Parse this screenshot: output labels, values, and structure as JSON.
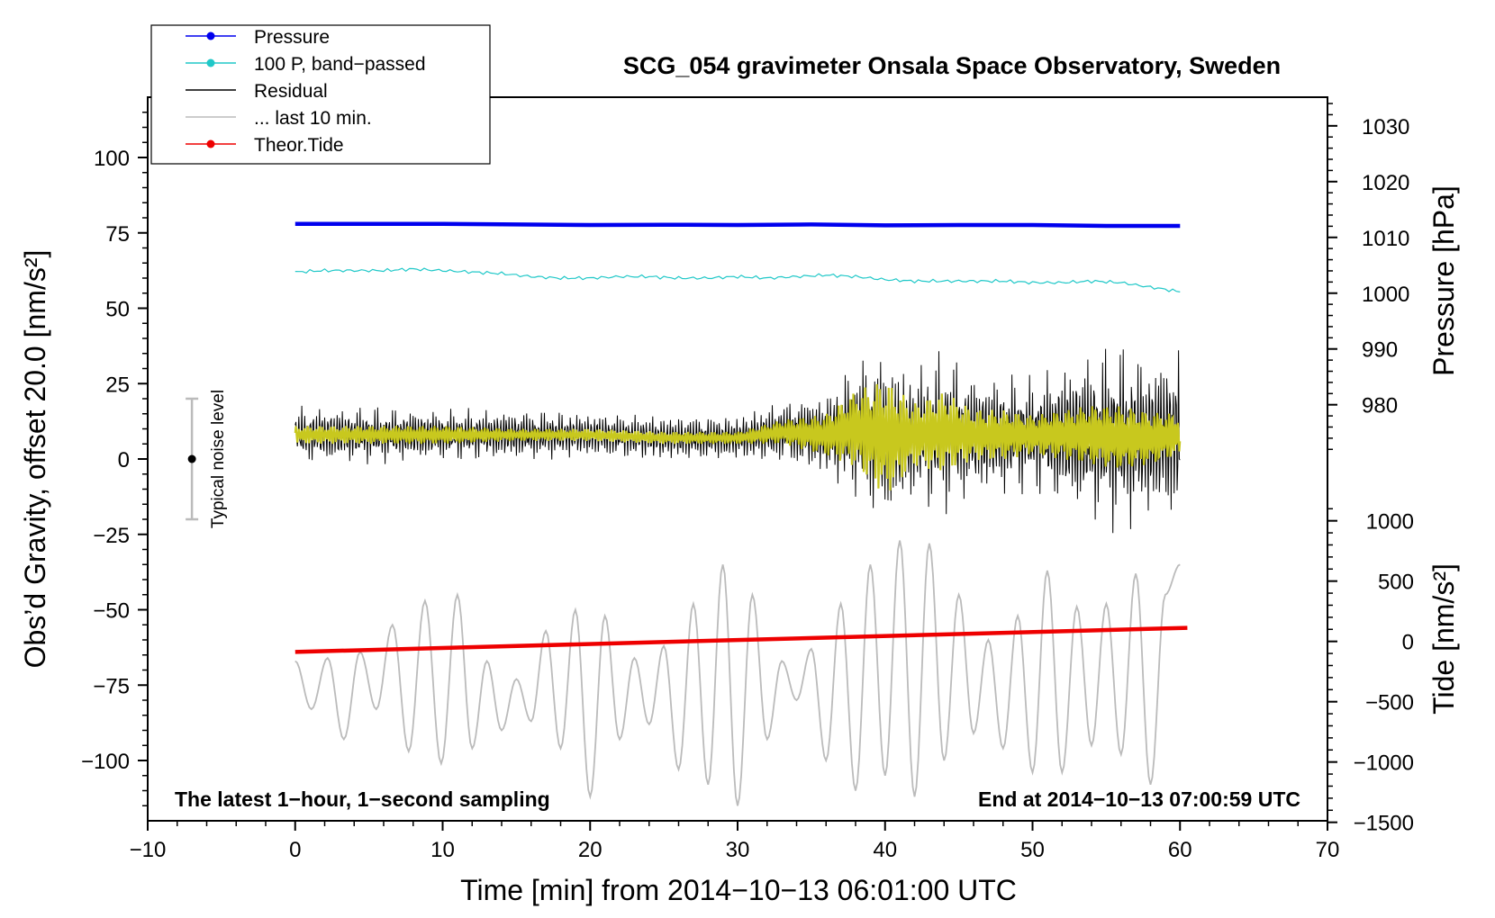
{
  "chart_data": {
    "type": "line",
    "title": "SCG_054 gravimeter Onsala Space Observatory, Sweden",
    "xlabel": "Time [min] from 2014−10−13 06:01:00 UTC",
    "ylabel_left": "Obs’d Gravity, offset 20.0 [nm/s²]",
    "ylabel_right_pressure": "Pressure [hPa]",
    "ylabel_right_tide": "Tide [nm/s²]",
    "xlim": [
      -10,
      70
    ],
    "ylim": [
      -120,
      120
    ],
    "xticks": [
      -10,
      0,
      10,
      20,
      30,
      40,
      50,
      60,
      70
    ],
    "xtick_labels": [
      "−10",
      "0",
      "10",
      "20",
      "30",
      "40",
      "50",
      "60",
      "70"
    ],
    "yticks": [
      -100,
      -75,
      -50,
      -25,
      0,
      25,
      50,
      75,
      100
    ],
    "ytick_labels": [
      "−100",
      "−75",
      "−50",
      "−25",
      "0",
      "25",
      "50",
      "75",
      "100"
    ],
    "pressure_axis": {
      "ticks": [
        980,
        990,
        1000,
        1010,
        1020,
        1030
      ],
      "tick_labels": [
        "980",
        "990",
        "1000",
        "1010",
        "1020",
        "1030"
      ],
      "gravity_at_980": 18,
      "gravity_units_per_hPa": 1.85
    },
    "tide_axis": {
      "ticks": [
        -1500,
        -1000,
        -500,
        0,
        500,
        1000
      ],
      "tick_labels": [
        "−1500",
        "−1000",
        "−500",
        "0",
        "500",
        "1000"
      ],
      "gravity_at_0": -60.5,
      "gravity_units_per_1000": 40
    },
    "legend": [
      {
        "label": "Pressure",
        "color": "#0000ee",
        "marker": true
      },
      {
        "label": "100 P, band−passed",
        "color": "#20c8c8",
        "marker": true
      },
      {
        "label": "Residual",
        "color": "#000000",
        "marker": false
      },
      {
        "label": "... last 10 min.",
        "color": "#bbbbbb",
        "marker": false
      },
      {
        "label": "Theor.Tide",
        "color": "#ee0000",
        "marker": true
      }
    ],
    "annotations": {
      "left": "The latest 1−hour, 1−second sampling",
      "right": "End at 2014−10−13 07:00:59 UTC",
      "noise": "Typical noise level"
    },
    "noise_bar": {
      "x": -7,
      "center": 0,
      "half_range": 20
    },
    "series": [
      {
        "name": "Pressure",
        "color": "#0000ee",
        "x": [
          0,
          5,
          10,
          15,
          20,
          25,
          30,
          35,
          40,
          45,
          50,
          55,
          60
        ],
        "y": [
          78.0,
          78.0,
          78.0,
          77.8,
          77.6,
          77.7,
          77.6,
          77.8,
          77.5,
          77.6,
          77.6,
          77.3,
          77.3
        ]
      },
      {
        "name": "100 P, band-passed",
        "color": "#20c8c8",
        "x": [
          0,
          2,
          4,
          6,
          8,
          10,
          12,
          14,
          16,
          18,
          20,
          22,
          24,
          26,
          28,
          30,
          32,
          34,
          36,
          38,
          40,
          42,
          44,
          46,
          48,
          50,
          52,
          54,
          56,
          58,
          60
        ],
        "y": [
          62,
          62.5,
          62.5,
          62.5,
          63,
          62.5,
          62,
          61.5,
          60.5,
          60,
          60,
          60.5,
          60.5,
          60,
          60,
          60.5,
          60,
          60.5,
          61,
          60.5,
          59.5,
          59,
          59,
          59,
          59,
          58.5,
          58.5,
          59,
          58.5,
          57,
          55.5
        ]
      },
      {
        "name": "Theor.Tide",
        "color": "#ee0000",
        "x": [
          0,
          60.5
        ],
        "y": [
          -64,
          -56
        ]
      },
      {
        "name": "Residual",
        "color": "#000000",
        "x": [
          0,
          5,
          10,
          15,
          20,
          25,
          30,
          33,
          36,
          38,
          40,
          42,
          44,
          46,
          48,
          50,
          52,
          54,
          56,
          58,
          60
        ],
        "y": [
          8,
          8,
          8,
          8,
          8,
          7,
          7,
          9,
          8,
          10,
          7,
          8,
          9,
          8,
          8,
          8,
          8,
          8,
          7,
          7,
          8
        ],
        "amplitude": [
          10,
          10,
          9,
          9,
          8,
          8,
          8,
          11,
          15,
          24,
          31,
          24,
          29,
          22,
          22,
          20,
          26,
          30,
          33,
          29,
          32
        ]
      },
      {
        "name": "band-passed residual",
        "color": "#c8c81e",
        "x": [
          0,
          5,
          10,
          15,
          20,
          25,
          30,
          33,
          36,
          38,
          40,
          42,
          44,
          46,
          48,
          50,
          52,
          54,
          56,
          58,
          60
        ],
        "y": [
          8,
          8,
          8,
          8,
          8,
          7,
          7,
          9,
          8,
          10,
          7,
          8,
          9,
          8,
          8,
          8,
          8,
          8,
          7,
          7,
          8
        ],
        "amplitude": [
          3,
          3,
          3,
          2,
          2,
          2,
          2,
          4,
          7,
          13,
          20,
          11,
          14,
          9,
          9,
          7,
          9,
          11,
          12,
          10,
          8
        ]
      },
      {
        "name": "... last 10 min.",
        "color": "#bbbbbb",
        "x": [
          0,
          1.1,
          2.2,
          3.3,
          4.4,
          5.5,
          6.6,
          7.7,
          8.8,
          9.9,
          11,
          12,
          13,
          14,
          15,
          16,
          17,
          18,
          19,
          20,
          21,
          22,
          23,
          24,
          25,
          26,
          27,
          28,
          29,
          30,
          31,
          32,
          33,
          34,
          35,
          36,
          37,
          38,
          39,
          40,
          41,
          42,
          43,
          44,
          45,
          46,
          47,
          48,
          49,
          50,
          51,
          52,
          53,
          54,
          55,
          56,
          57,
          58,
          59,
          60
        ],
        "y": [
          -67,
          -83,
          -66,
          -93,
          -64,
          -83,
          -55,
          -97,
          -47,
          -101,
          -45,
          -96,
          -67,
          -90,
          -73,
          -87,
          -57,
          -96,
          -50,
          -112,
          -52,
          -93,
          -66,
          -88,
          -62,
          -103,
          -48,
          -108,
          -35,
          -115,
          -45,
          -93,
          -67,
          -80,
          -63,
          -100,
          -48,
          -110,
          -35,
          -105,
          -27,
          -112,
          -28,
          -100,
          -45,
          -91,
          -60,
          -96,
          -52,
          -104,
          -37,
          -104,
          -49,
          -95,
          -48,
          -98,
          -38,
          -108,
          -45,
          -35
        ]
      }
    ]
  }
}
